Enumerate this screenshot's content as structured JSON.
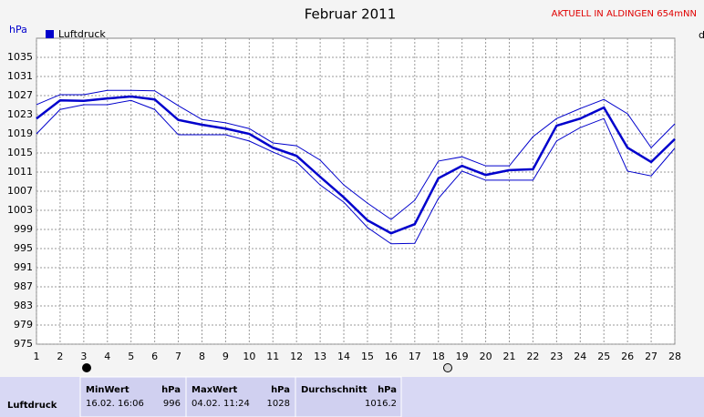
{
  "chart_data": {
    "type": "line",
    "title": "Februar 2011",
    "y_label": "hPa",
    "annotations": [
      "AKTUELL IN ALDINGEN 654mNN",
      "d"
    ],
    "x": [
      1,
      2,
      3,
      4,
      5,
      6,
      7,
      8,
      9,
      10,
      11,
      12,
      13,
      14,
      15,
      16,
      17,
      18,
      19,
      20,
      21,
      22,
      23,
      24,
      25,
      26,
      27,
      28
    ],
    "xlim": [
      1,
      28
    ],
    "xticks": [
      1,
      2,
      3,
      4,
      5,
      6,
      7,
      8,
      9,
      10,
      11,
      12,
      13,
      14,
      15,
      16,
      17,
      18,
      19,
      20,
      21,
      22,
      23,
      24,
      25,
      26,
      27,
      28
    ],
    "ylim": [
      975,
      1039
    ],
    "yticks": [
      975,
      979,
      983,
      987,
      991,
      995,
      999,
      1003,
      1007,
      1011,
      1015,
      1019,
      1023,
      1027,
      1031,
      1035
    ],
    "grid": true,
    "legend": "top-left",
    "series": [
      {
        "name": "Luftdruck",
        "color": "#0000cc",
        "values": [
          1022.2,
          1026,
          1025.9,
          1026.4,
          1026.8,
          1026.2,
          1021.9,
          1020.9,
          1020.1,
          1019,
          1016.1,
          1014.4,
          1010,
          1005.7,
          1000.9,
          998.2,
          1000.1,
          1009.7,
          1012.3,
          1010.4,
          1011.4,
          1011.6,
          1020.7,
          1022.2,
          1024.5,
          1016.1,
          1013.1,
          1017.9
        ]
      },
      {
        "color": "#0000cc",
        "values": [
          1025.1,
          1027.2,
          1027.2,
          1028.1,
          1028.1,
          1028,
          1024.9,
          1022,
          1021.3,
          1020.1,
          1017.1,
          1016.5,
          1013.5,
          1008.3,
          1004.5,
          1001.1,
          1005.1,
          1013.3,
          1014.2,
          1012.3,
          1012.3,
          1018.4,
          1022.2,
          1024.3,
          1026.2,
          1023.2,
          1016.1,
          1021.1
        ]
      },
      {
        "color": "#0000cc",
        "values": [
          1019,
          1024.1,
          1025.1,
          1025.1,
          1026,
          1024.1,
          1018.8,
          1018.8,
          1018.8,
          1017.5,
          1015.2,
          1013.1,
          1008.3,
          1004.7,
          999.4,
          996,
          996.1,
          1005.5,
          1011.2,
          1009.3,
          1009.3,
          1009.3,
          1017.5,
          1020.3,
          1022.2,
          1011.2,
          1010.2,
          1016
        ]
      }
    ]
  },
  "table": {
    "row_label": "Luftdruck",
    "columns": [
      {
        "header": "MinWert",
        "unit": "hPa",
        "time": "16.02. 16:06",
        "value": 996
      },
      {
        "header": "MaxWert",
        "unit": "hPa",
        "time": "04.02. 11:24",
        "value": 1028
      },
      {
        "header": "Durchschnitt",
        "unit": "hPa",
        "value": 1016.2
      }
    ]
  }
}
